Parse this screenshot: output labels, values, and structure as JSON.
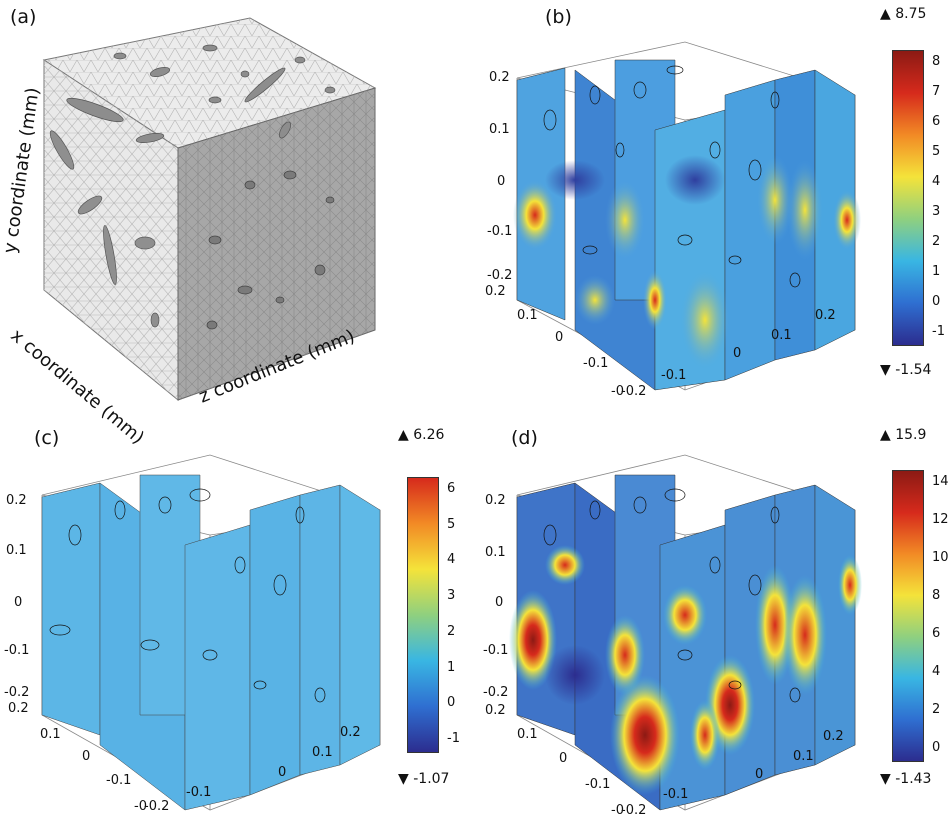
{
  "panels": {
    "a": {
      "label": "(a)",
      "axes": {
        "y": "y coordinate (mm)",
        "x": "x coordinate (mm)",
        "z": "z coordinate (mm)"
      }
    },
    "b": {
      "label": "(b)",
      "max": "8.75",
      "min": "-1.54",
      "colorbar_ticks": [
        "8",
        "7",
        "6",
        "5",
        "4",
        "3",
        "2",
        "1",
        "0",
        "-1"
      ],
      "colormap": [
        "#2c2d8f",
        "#2f6fd1",
        "#39b6e3",
        "#8fd07f",
        "#f4e33a",
        "#f28a25",
        "#d62a1c",
        "#8c1a14"
      ]
    },
    "c": {
      "label": "(c)",
      "max": "6.26",
      "min": "-1.07",
      "colorbar_ticks": [
        "6",
        "5",
        "4",
        "3",
        "2",
        "1",
        "0",
        "-1"
      ],
      "colormap": [
        "#2c2d8f",
        "#2f6fd1",
        "#39b6e3",
        "#8fd07f",
        "#f4e33a",
        "#f28a25",
        "#d62a1c"
      ]
    },
    "d": {
      "label": "(d)",
      "max": "15.9",
      "min": "-1.43",
      "colorbar_ticks": [
        "14",
        "12",
        "10",
        "8",
        "6",
        "4",
        "2",
        "0"
      ],
      "colormap": [
        "#2c2d8f",
        "#2f6fd1",
        "#39b6e3",
        "#8fd07f",
        "#f4e33a",
        "#f28a25",
        "#d62a1c",
        "#8c1a14"
      ]
    }
  },
  "axis_ticks": {
    "y": [
      "0.2",
      "0.1",
      "0",
      "-0.1",
      "-0.2"
    ],
    "x": [
      "0.2",
      "0.1",
      "0",
      "-0.1",
      "-0"
    ],
    "z": [
      "-0.2",
      "-0.1",
      "0",
      "0.1",
      "0.2"
    ]
  },
  "symbols": {
    "max_marker": "▲",
    "min_marker": "▼"
  },
  "colors": {
    "mesh_light": "#e6e6e6",
    "mesh_dark": "#a9a9a9",
    "field_base_b": "#4fa3e0",
    "field_base_c": "#5cb6e6",
    "field_base_d": "#3f74c8"
  }
}
